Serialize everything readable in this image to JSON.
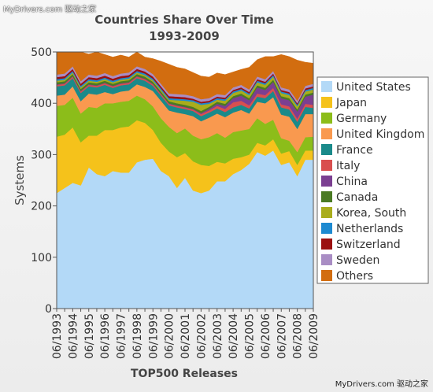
{
  "watermark_top": "MyDrivers.com 驱动之家",
  "watermark_bottom": "MyDrivers.com 驱动之家",
  "chart_data": {
    "type": "area",
    "stacked": true,
    "title": "Countries Share Over Time",
    "subtitle": "1993-2009",
    "xlabel": "TOP500 Releases",
    "ylabel": "Systems",
    "ylim": [
      0,
      500
    ],
    "yticks": [
      0,
      100,
      200,
      300,
      400,
      500
    ],
    "grid": false,
    "legend_position": "right",
    "x": [
      "06/1993",
      "11/1993",
      "06/1994",
      "11/1994",
      "06/1995",
      "11/1995",
      "06/1996",
      "11/1996",
      "06/1997",
      "11/1997",
      "06/1998",
      "11/1998",
      "06/1999",
      "11/1999",
      "06/2000",
      "11/2000",
      "06/2001",
      "11/2001",
      "06/2002",
      "11/2002",
      "06/2003",
      "11/2003",
      "06/2004",
      "11/2004",
      "06/2005",
      "11/2005",
      "06/2006",
      "11/2006",
      "06/2007",
      "11/2007",
      "06/2008",
      "11/2008",
      "06/2009"
    ],
    "xtick_labels": [
      "06/1993",
      "06/1994",
      "06/1995",
      "06/1996",
      "06/1997",
      "06/1998",
      "06/1999",
      "06/2000",
      "06/2001",
      "06/2002",
      "06/2003",
      "06/2004",
      "06/2005",
      "06/2006",
      "06/2007",
      "06/2008",
      "06/2009"
    ],
    "series": [
      {
        "name": "United States",
        "color": "#b3d9f7",
        "values": [
          225,
          235,
          245,
          240,
          275,
          262,
          258,
          268,
          265,
          265,
          285,
          290,
          292,
          268,
          258,
          235,
          255,
          230,
          225,
          230,
          248,
          248,
          262,
          270,
          282,
          305,
          298,
          308,
          280,
          285,
          258,
          290,
          290
        ]
      },
      {
        "name": "Japan",
        "color": "#f5c21b",
        "values": [
          110,
          104,
          108,
          84,
          62,
          75,
          90,
          80,
          88,
          90,
          82,
          72,
          56,
          55,
          48,
          60,
          48,
          57,
          55,
          48,
          38,
          35,
          30,
          25,
          18,
          18,
          20,
          22,
          22,
          22,
          22,
          18,
          18
        ]
      },
      {
        "name": "Germany",
        "color": "#8cbd1a",
        "values": [
          60,
          58,
          58,
          56,
          56,
          54,
          52,
          52,
          50,
          50,
          48,
          46,
          46,
          48,
          48,
          47,
          48,
          50,
          50,
          56,
          56,
          50,
          52,
          52,
          50,
          48,
          42,
          38,
          30,
          20,
          25,
          26,
          27
        ]
      },
      {
        "name": "United Kingdom",
        "color": "#f9994f",
        "values": [
          20,
          20,
          22,
          24,
          26,
          26,
          22,
          18,
          20,
          20,
          22,
          24,
          30,
          34,
          32,
          40,
          28,
          38,
          35,
          38,
          38,
          40,
          38,
          40,
          30,
          32,
          40,
          44,
          46,
          47,
          45,
          45,
          44
        ]
      },
      {
        "name": "France",
        "color": "#1a8a8a",
        "values": [
          18,
          18,
          16,
          16,
          14,
          14,
          14,
          12,
          12,
          12,
          12,
          12,
          10,
          10,
          10,
          10,
          10,
          10,
          10,
          10,
          10,
          10,
          10,
          10,
          10,
          10,
          10,
          12,
          14,
          14,
          14,
          14,
          12
        ]
      },
      {
        "name": "Italy",
        "color": "#d94f4f",
        "values": [
          3,
          3,
          3,
          3,
          3,
          3,
          3,
          3,
          3,
          3,
          3,
          3,
          3,
          3,
          3,
          3,
          3,
          3,
          4,
          4,
          5,
          6,
          10,
          8,
          6,
          6,
          6,
          6,
          6,
          6,
          6,
          6,
          6
        ]
      },
      {
        "name": "China",
        "color": "#7b3f91",
        "values": [
          1,
          1,
          1,
          1,
          1,
          1,
          1,
          1,
          1,
          1,
          1,
          1,
          1,
          1,
          1,
          1,
          1,
          1,
          2,
          3,
          4,
          6,
          8,
          10,
          10,
          12,
          10,
          12,
          12,
          12,
          14,
          14,
          20
        ]
      },
      {
        "name": "Canada",
        "color": "#4a7a23",
        "values": [
          4,
          4,
          4,
          4,
          4,
          4,
          4,
          4,
          4,
          4,
          4,
          4,
          4,
          4,
          4,
          4,
          4,
          4,
          4,
          4,
          4,
          4,
          4,
          4,
          4,
          4,
          4,
          4,
          4,
          4,
          4,
          4,
          4
        ]
      },
      {
        "name": "Korea, South",
        "color": "#a9ad1c",
        "values": [
          3,
          3,
          3,
          3,
          3,
          3,
          3,
          3,
          3,
          3,
          3,
          3,
          3,
          3,
          3,
          6,
          8,
          10,
          12,
          6,
          4,
          6,
          6,
          6,
          6,
          6,
          6,
          6,
          6,
          6,
          6,
          6,
          6
        ]
      },
      {
        "name": "Netherlands",
        "color": "#1d8ad1",
        "values": [
          3,
          3,
          3,
          3,
          3,
          3,
          3,
          3,
          3,
          3,
          3,
          3,
          3,
          3,
          3,
          3,
          3,
          3,
          3,
          3,
          3,
          3,
          3,
          3,
          3,
          3,
          3,
          3,
          3,
          3,
          3,
          3,
          3
        ]
      },
      {
        "name": "Switzerland",
        "color": "#9b1010",
        "values": [
          4,
          4,
          4,
          4,
          4,
          4,
          4,
          4,
          4,
          4,
          4,
          4,
          4,
          4,
          4,
          4,
          4,
          3,
          3,
          3,
          3,
          3,
          3,
          3,
          3,
          3,
          3,
          3,
          3,
          3,
          3,
          3,
          3
        ]
      },
      {
        "name": "Sweden",
        "color": "#a98dc4",
        "values": [
          5,
          5,
          5,
          5,
          5,
          5,
          5,
          5,
          5,
          5,
          5,
          5,
          5,
          5,
          5,
          5,
          5,
          5,
          5,
          5,
          5,
          5,
          5,
          5,
          5,
          5,
          5,
          5,
          5,
          5,
          5,
          5,
          5
        ]
      },
      {
        "name": "Others",
        "color": "#d26d10",
        "values": [
          44,
          42,
          28,
          57,
          40,
          46,
          36,
          37,
          36,
          30,
          28,
          23,
          30,
          44,
          57,
          52,
          50,
          46,
          45,
          41,
          41,
          40,
          30,
          30,
          43,
          33,
          44,
          28,
          64,
          64,
          79,
          46,
          40
        ]
      }
    ]
  }
}
